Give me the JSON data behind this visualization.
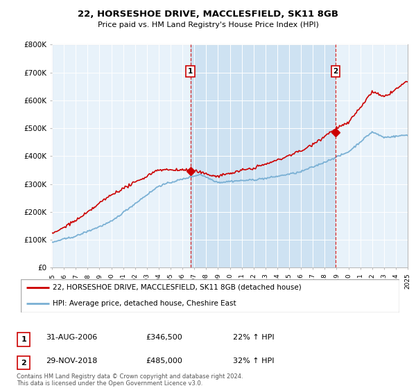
{
  "title": "22, HORSESHOE DRIVE, MACCLESFIELD, SK11 8GB",
  "subtitle": "Price paid vs. HM Land Registry's House Price Index (HPI)",
  "legend_line1": "22, HORSESHOE DRIVE, MACCLESFIELD, SK11 8GB (detached house)",
  "legend_line2": "HPI: Average price, detached house, Cheshire East",
  "sale1_date": "31-AUG-2006",
  "sale1_price": "£346,500",
  "sale1_hpi": "22% ↑ HPI",
  "sale2_date": "29-NOV-2018",
  "sale2_price": "£485,000",
  "sale2_hpi": "32% ↑ HPI",
  "footnote": "Contains HM Land Registry data © Crown copyright and database right 2024.\nThis data is licensed under the Open Government Licence v3.0.",
  "red_color": "#cc0000",
  "blue_color": "#7ab0d4",
  "plot_bg": "#e8f2fa",
  "shade_color": "#c8dff0",
  "vline_color": "#cc0000",
  "ylim_min": 0,
  "ylim_max": 800000,
  "yticks": [
    0,
    100000,
    200000,
    300000,
    400000,
    500000,
    600000,
    700000,
    800000
  ],
  "ytick_labels": [
    "£0",
    "£100K",
    "£200K",
    "£300K",
    "£400K",
    "£500K",
    "£600K",
    "£700K",
    "£800K"
  ],
  "sale1_x": 2006.67,
  "sale1_y": 346500,
  "sale2_x": 2018.92,
  "sale2_y": 485000,
  "xmin": 1995,
  "xmax": 2025
}
